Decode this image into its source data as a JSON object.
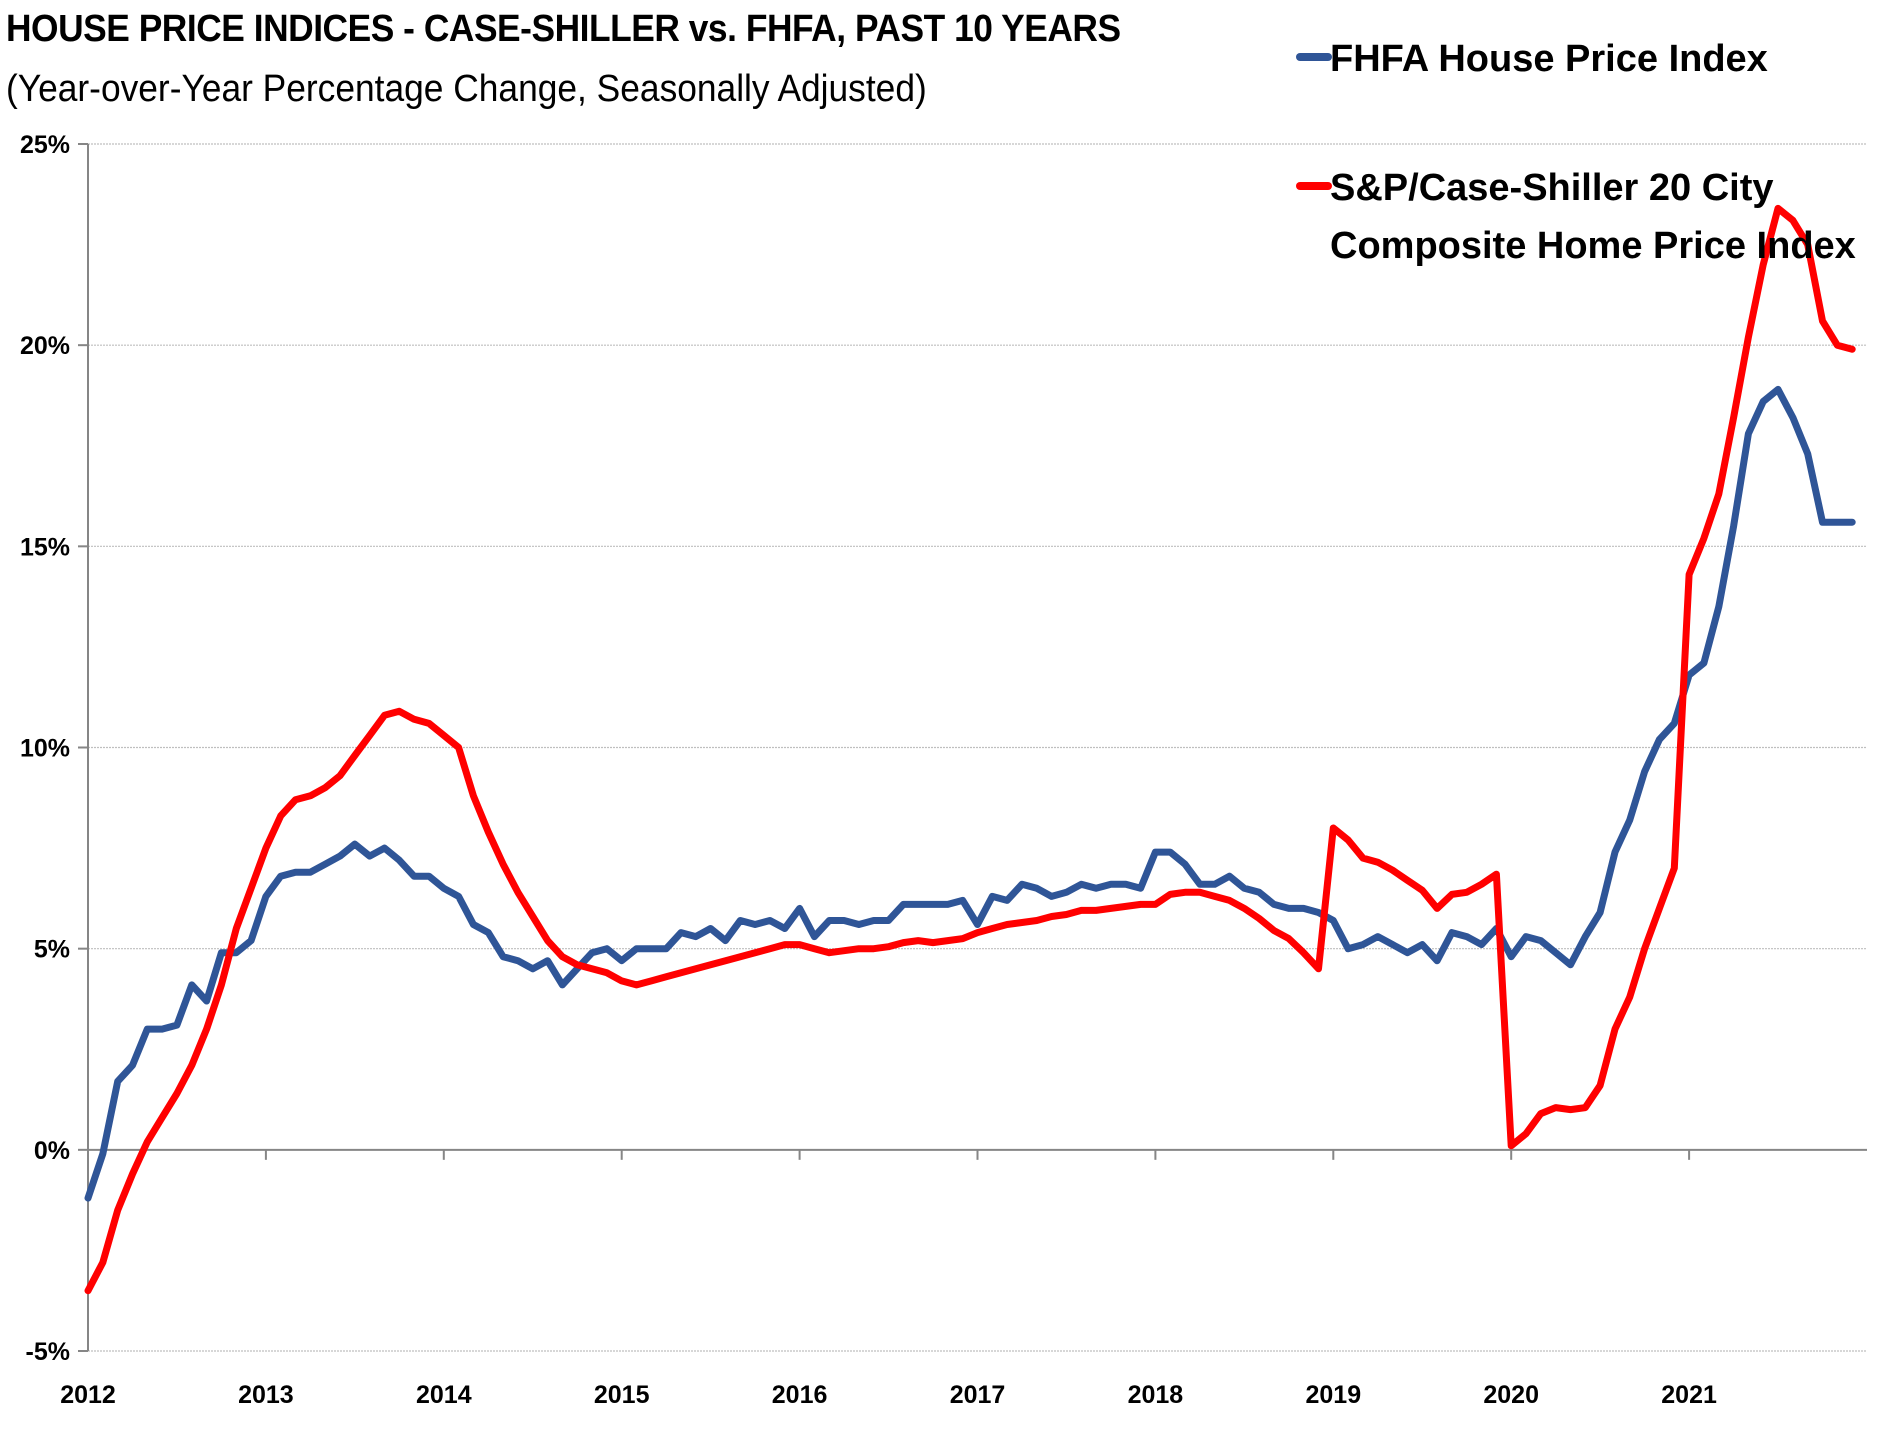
{
  "chart_data": {
    "type": "line",
    "title": "HOUSE PRICE INDICES - CASE-SHILLER vs. FHFA, PAST 10 YEARS",
    "subtitle": "(Year-over-Year Percentage Change, Seasonally Adjusted)",
    "xlabel": "",
    "ylabel": "",
    "ylim": [
      -5,
      25
    ],
    "yticks": [
      -5,
      0,
      5,
      10,
      15,
      20,
      25
    ],
    "ytick_labels": [
      "-5%",
      "0%",
      "5%",
      "10%",
      "15%",
      "20%",
      "25%"
    ],
    "x_start": "2012-01",
    "x_frequency": "monthly",
    "xtick_labels": [
      "2012",
      "2013",
      "2014",
      "2015",
      "2016",
      "2017",
      "2018",
      "2019",
      "2020",
      "2021"
    ],
    "grid": "horizontal",
    "legend_position": "top-right",
    "series": [
      {
        "name": "FHFA House Price Index",
        "color": "#2F5597",
        "values": [
          -1.2,
          -0.1,
          1.7,
          2.1,
          3.0,
          3.0,
          3.1,
          4.1,
          3.7,
          4.9,
          4.9,
          5.2,
          6.3,
          6.8,
          6.9,
          6.9,
          7.1,
          7.3,
          7.6,
          7.3,
          7.5,
          7.2,
          6.8,
          6.8,
          6.5,
          6.3,
          5.6,
          5.4,
          4.8,
          4.7,
          4.5,
          4.7,
          4.1,
          4.5,
          4.9,
          5.0,
          4.7,
          5.0,
          5.0,
          5.0,
          5.4,
          5.3,
          5.5,
          5.2,
          5.7,
          5.6,
          5.7,
          5.5,
          6.0,
          5.3,
          5.7,
          5.7,
          5.6,
          5.7,
          5.7,
          6.1,
          6.1,
          6.1,
          6.1,
          6.2,
          5.6,
          6.3,
          6.2,
          6.6,
          6.5,
          6.3,
          6.4,
          6.6,
          6.5,
          6.6,
          6.6,
          6.5,
          7.4,
          7.4,
          7.1,
          6.6,
          6.6,
          6.8,
          6.5,
          6.4,
          6.1,
          6.0,
          6.0,
          5.9,
          5.7,
          5.0,
          5.1,
          5.3,
          5.1,
          4.9,
          5.1,
          4.7,
          5.4,
          5.3,
          5.1,
          5.5,
          4.8,
          5.3,
          5.2,
          4.9,
          4.6,
          5.3,
          5.9,
          7.4,
          8.2,
          9.4,
          10.2,
          10.6,
          11.8,
          12.1,
          13.5,
          15.5,
          17.8,
          18.6,
          18.9,
          18.2,
          17.3,
          15.6,
          15.6,
          15.6
        ]
      },
      {
        "name": "S&P/Case-Shiller 20 City Composite Home Price Index",
        "legend_lines": [
          "S&P/Case-Shiller 20 City",
          "Composite Home Price Index"
        ],
        "color": "#FF0000",
        "values": [
          -3.5,
          -2.8,
          -1.5,
          -0.6,
          0.2,
          0.8,
          1.4,
          2.1,
          3.0,
          4.1,
          5.5,
          6.5,
          7.5,
          8.3,
          8.7,
          8.8,
          9.0,
          9.3,
          9.8,
          10.3,
          10.8,
          10.9,
          10.7,
          10.6,
          10.3,
          10.0,
          8.8,
          7.9,
          7.1,
          6.4,
          5.8,
          5.2,
          4.8,
          4.6,
          4.5,
          4.4,
          4.2,
          4.1,
          4.2,
          4.3,
          4.4,
          4.5,
          4.6,
          4.7,
          4.8,
          4.9,
          5.0,
          5.1,
          5.1,
          5.0,
          4.9,
          4.95,
          5.0,
          5.0,
          5.05,
          5.15,
          5.2,
          5.15,
          5.2,
          5.25,
          5.4,
          5.5,
          5.6,
          5.65,
          5.7,
          5.8,
          5.85,
          5.95,
          5.95,
          6.0,
          6.05,
          6.1,
          6.1,
          6.35,
          6.4,
          6.4,
          6.3,
          6.2,
          6.0,
          5.75,
          5.45,
          5.25,
          4.9,
          4.5,
          8.0,
          7.7,
          7.25,
          7.15,
          6.95,
          6.7,
          6.45,
          6.0,
          6.35,
          6.4,
          6.6,
          6.85,
          0.1,
          0.4,
          0.9,
          1.05,
          1.0,
          1.05,
          1.6,
          3.0,
          3.8,
          5.0,
          6.0,
          7.0,
          14.3,
          15.2,
          16.3,
          18.2,
          20.2,
          22.0,
          23.4,
          23.1,
          22.5,
          20.6,
          20.0,
          19.9
        ]
      }
    ]
  }
}
